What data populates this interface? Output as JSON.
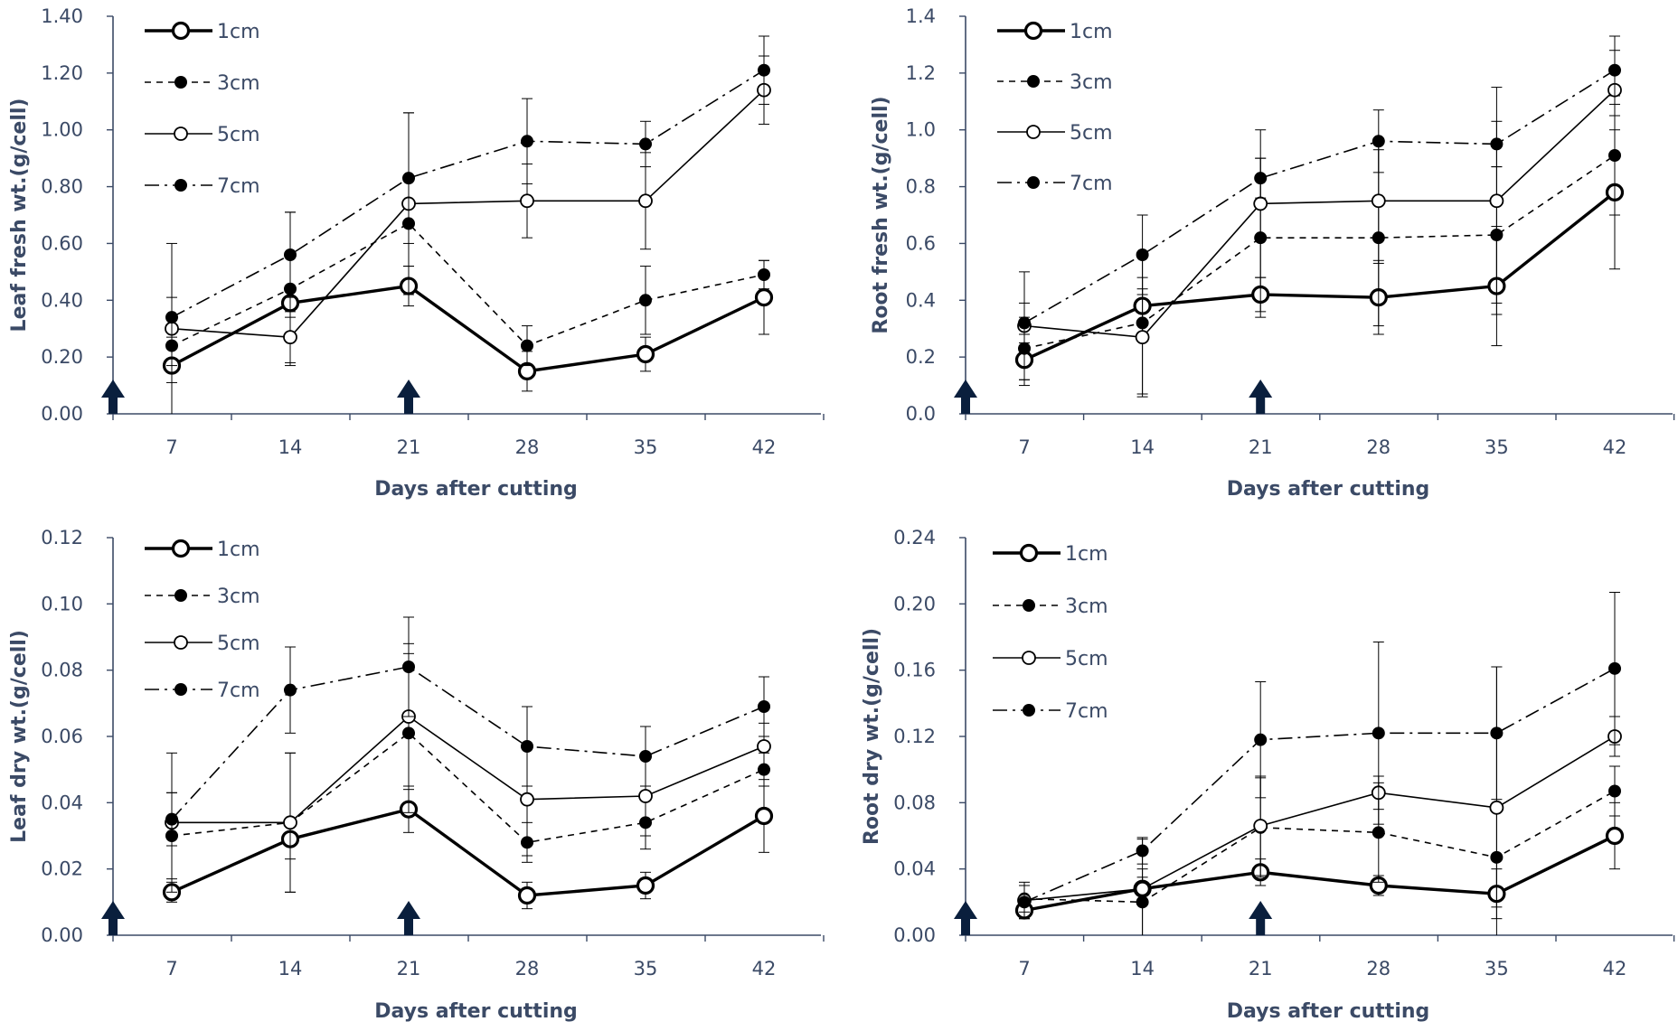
{
  "figure": {
    "x_label": "Days after cutting",
    "legend": [
      "1cm",
      "3cm",
      "5cm",
      "7cm"
    ],
    "series_styles": {
      "1cm": {
        "marker": "open-large",
        "line": "solid-thick"
      },
      "3cm": {
        "marker": "filled",
        "line": "dashed"
      },
      "5cm": {
        "marker": "open-small",
        "line": "solid-thin"
      },
      "7cm": {
        "marker": "filled",
        "line": "dash-dot"
      }
    },
    "colors": {
      "axis": "#3b4a66",
      "series": "#000000",
      "arrow": "#0a1f3d"
    }
  },
  "chart_data": [
    {
      "type": "line",
      "ylabel": "Leaf fresh wt.(g/cell)",
      "xlabel": "Days after cutting",
      "categories": [
        "7",
        "14",
        "21",
        "28",
        "35",
        "42"
      ],
      "ylim": [
        0,
        1.4
      ],
      "yticks": [
        "0.00",
        "0.20",
        "0.40",
        "0.60",
        "0.80",
        "1.00",
        "1.20",
        "1.40"
      ],
      "arrows_at": [
        "0",
        "21"
      ],
      "series": [
        {
          "name": "1cm",
          "values": [
            0.17,
            0.39,
            0.45,
            0.15,
            0.21,
            0.41
          ],
          "errors": [
            0.06,
            0.05,
            0.07,
            0.07,
            0.06,
            0.13
          ]
        },
        {
          "name": "3cm",
          "values": [
            0.24,
            0.44,
            0.67,
            0.24,
            0.4,
            0.49
          ],
          "errors": [
            0.07,
            0.27,
            0.15,
            0.07,
            0.12,
            0.05
          ]
        },
        {
          "name": "5cm",
          "values": [
            0.3,
            0.27,
            0.74,
            0.75,
            0.75,
            1.14
          ],
          "errors": [
            0.3,
            0.09,
            0.32,
            0.13,
            0.17,
            0.12
          ]
        },
        {
          "name": "7cm",
          "values": [
            0.34,
            0.56,
            0.83,
            0.96,
            0.95,
            1.21
          ],
          "errors": [
            0.07,
            0.15,
            0.23,
            0.15,
            0.08,
            0.12
          ]
        }
      ]
    },
    {
      "type": "line",
      "ylabel": "Root fresh wt.(g/cell)",
      "xlabel": "Days after cutting",
      "categories": [
        "7",
        "14",
        "21",
        "28",
        "35",
        "42"
      ],
      "ylim": [
        0,
        1.4
      ],
      "yticks": [
        "0.0",
        "0.2",
        "0.4",
        "0.6",
        "0.8",
        "1.0",
        "1.2",
        "1.4"
      ],
      "arrows_at": [
        "0",
        "21"
      ],
      "series": [
        {
          "name": "1cm",
          "values": [
            0.19,
            0.38,
            0.42,
            0.41,
            0.45,
            0.78
          ],
          "errors": [
            0.09,
            0.06,
            0.06,
            0.13,
            0.21,
            0.27
          ]
        },
        {
          "name": "3cm",
          "values": [
            0.23,
            0.32,
            0.62,
            0.62,
            0.63,
            0.91
          ],
          "errors": [
            0.11,
            0.25,
            0.28,
            0.31,
            0.24,
            0.21
          ]
        },
        {
          "name": "5cm",
          "values": [
            0.31,
            0.27,
            0.74,
            0.75,
            0.75,
            1.14
          ],
          "errors": [
            0.19,
            0.21,
            0.26,
            0.22,
            0.4,
            0.14
          ]
        },
        {
          "name": "7cm",
          "values": [
            0.32,
            0.56,
            0.83,
            0.96,
            0.95,
            1.21
          ],
          "errors": [
            0.07,
            0.14,
            0.07,
            0.11,
            0.08,
            0.12
          ]
        }
      ]
    },
    {
      "type": "line",
      "ylabel": "Leaf dry wt.(g/cell)",
      "xlabel": "Days after cutting",
      "categories": [
        "7",
        "14",
        "21",
        "28",
        "35",
        "42"
      ],
      "ylim": [
        0,
        0.12
      ],
      "yticks": [
        "0.00",
        "0.02",
        "0.04",
        "0.06",
        "0.08",
        "0.10",
        "0.12"
      ],
      "arrows_at": [
        "0",
        "21"
      ],
      "series": [
        {
          "name": "1cm",
          "values": [
            0.013,
            0.029,
            0.038,
            0.012,
            0.015,
            0.036
          ],
          "errors": [
            0.003,
            0.006,
            0.007,
            0.004,
            0.004,
            0.011
          ]
        },
        {
          "name": "3cm",
          "values": [
            0.03,
            0.034,
            0.061,
            0.028,
            0.034,
            0.05
          ],
          "errors": [
            0.013,
            0.021,
            0.024,
            0.006,
            0.008,
            0.005
          ]
        },
        {
          "name": "5cm",
          "values": [
            0.034,
            0.034,
            0.066,
            0.041,
            0.042,
            0.057
          ],
          "errors": [
            0.021,
            0.021,
            0.022,
            0.017,
            0.012,
            0.007
          ]
        },
        {
          "name": "7cm",
          "values": [
            0.035,
            0.074,
            0.081,
            0.057,
            0.054,
            0.069
          ],
          "errors": [
            0.008,
            0.013,
            0.015,
            0.012,
            0.009,
            0.009
          ]
        }
      ]
    },
    {
      "type": "line",
      "ylabel": "Root dry wt.(g/cell)",
      "xlabel": "Days after cutting",
      "categories": [
        "7",
        "14",
        "21",
        "28",
        "35",
        "42"
      ],
      "ylim": [
        0,
        0.24
      ],
      "yticks": [
        "0.00",
        "0.04",
        "0.08",
        "0.12",
        "0.16",
        "0.20",
        "0.24"
      ],
      "arrows_at": [
        "0",
        "21"
      ],
      "series": [
        {
          "name": "1cm",
          "values": [
            0.015,
            0.028,
            0.038,
            0.03,
            0.025,
            0.06
          ],
          "errors": [
            0.005,
            0.007,
            0.008,
            0.006,
            0.015,
            0.02
          ]
        },
        {
          "name": "3cm",
          "values": [
            0.022,
            0.02,
            0.065,
            0.062,
            0.047,
            0.087
          ],
          "errors": [
            0.008,
            0.02,
            0.03,
            0.03,
            0.03,
            0.015
          ]
        },
        {
          "name": "5cm",
          "values": [
            0.021,
            0.028,
            0.066,
            0.086,
            0.077,
            0.12
          ],
          "errors": [
            0.011,
            0.03,
            0.03,
            0.01,
            0.085,
            0.012
          ]
        },
        {
          "name": "7cm",
          "values": [
            0.02,
            0.051,
            0.118,
            0.122,
            0.122,
            0.161
          ],
          "errors": [
            0.01,
            0.008,
            0.035,
            0.055,
            0.04,
            0.046
          ]
        }
      ]
    }
  ]
}
